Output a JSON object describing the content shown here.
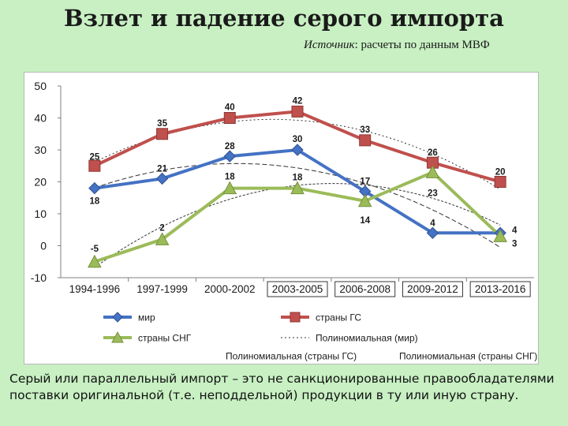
{
  "title": "Взлет и падение  серого импорта",
  "source": {
    "label": "Источник",
    "text": ": расчеты по данным МВФ"
  },
  "footnote": "Серый или параллельный импорт – это не санкционированные правообладателями поставки оригинальной (т.е. неподдельной) продукции в ту или иную страну.",
  "chart_data": {
    "type": "line",
    "categories": [
      "1994-1996",
      "1997-1999",
      "2000-2002",
      "2003-2005",
      "2006-2008",
      "2009-2012",
      "2013-2016"
    ],
    "ylim": [
      -10,
      50
    ],
    "yticks": [
      -10,
      0,
      10,
      20,
      30,
      40,
      50
    ],
    "series": [
      {
        "name": "мир",
        "color": "#4472c4",
        "marker": "diamond",
        "values": [
          18,
          21,
          28,
          30,
          17,
          4,
          4
        ]
      },
      {
        "name": "страны ГС",
        "color": "#c0504d",
        "marker": "square",
        "values": [
          25,
          35,
          40,
          42,
          33,
          26,
          20
        ]
      },
      {
        "name": "страны СНГ",
        "color": "#9bbb59",
        "marker": "triangle",
        "values": [
          -5,
          2,
          18,
          18,
          14,
          23,
          3
        ]
      }
    ],
    "trendlines": [
      {
        "name": "Полиномиальная (мир)",
        "of": "мир",
        "style": "dashed"
      },
      {
        "name": "Полиномиальная (страны ГС)",
        "of": "страны ГС",
        "style": "dashed"
      },
      {
        "name": "Полиномиальная (страны СНГ)",
        "of": "страны СНГ",
        "style": "dashed"
      }
    ],
    "legend_placement": "bottom"
  }
}
